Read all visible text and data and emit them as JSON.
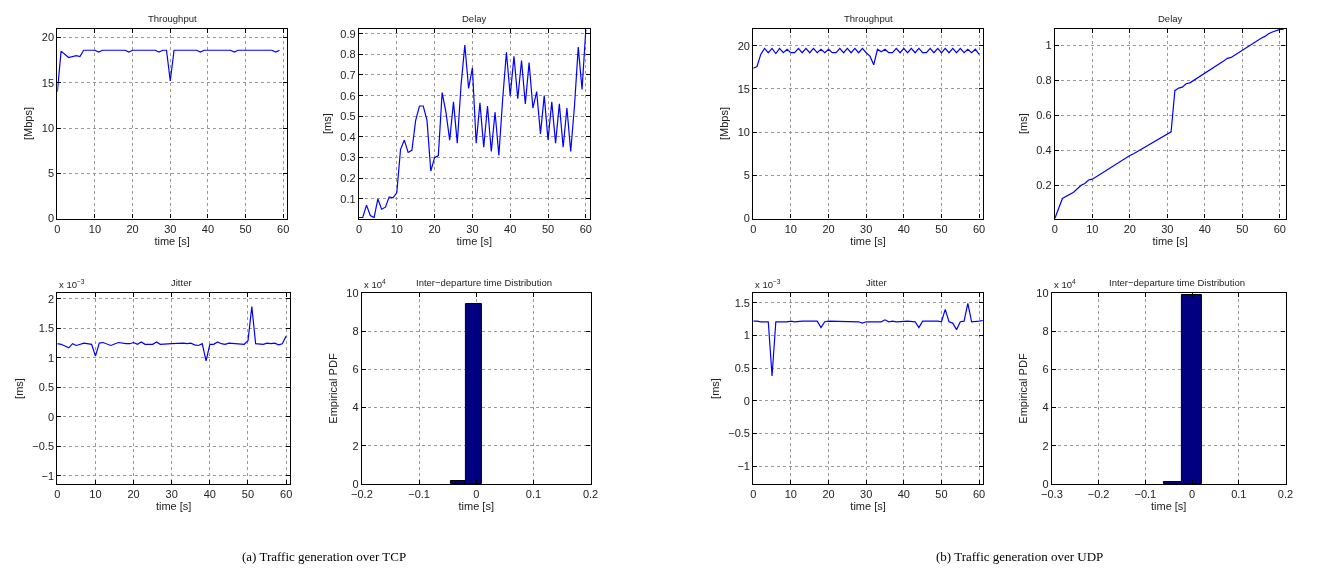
{
  "chart_data": [
    {
      "type": "line",
      "title": "Throughput",
      "xlabel": "time [s]",
      "ylabel": "[Mbps]",
      "color": "#0000ff",
      "grid": true,
      "xlim": [
        0,
        61
      ],
      "ylim": [
        0,
        21
      ],
      "xticks": [
        0,
        10,
        20,
        30,
        40,
        50,
        60
      ],
      "yticks": [
        0,
        5,
        10,
        15,
        20
      ],
      "x": [
        0,
        1,
        3,
        5,
        6,
        7,
        10,
        11,
        12,
        18,
        19,
        20,
        26,
        27,
        28,
        29,
        30,
        31,
        37,
        38,
        39,
        46,
        47,
        48,
        57,
        58,
        59
      ],
      "values": [
        14,
        18.5,
        17.8,
        18,
        17.9,
        18.6,
        18.6,
        18.4,
        18.6,
        18.6,
        18.4,
        18.6,
        18.6,
        18.4,
        18.6,
        18.6,
        15.2,
        18.6,
        18.6,
        18.4,
        18.6,
        18.6,
        18.4,
        18.6,
        18.6,
        18.4,
        18.6
      ]
    },
    {
      "type": "line",
      "title": "Delay",
      "xlabel": "time [s]",
      "ylabel": "[ms]",
      "color": "#0000ff",
      "grid": true,
      "xlim": [
        0,
        61
      ],
      "ylim": [
        0.005,
        0.925
      ],
      "xticks": [
        0,
        10,
        20,
        30,
        40,
        50,
        60
      ],
      "yticks": [
        0.1,
        0.2,
        0.3,
        0.4,
        0.5,
        0.6,
        0.7,
        0.8,
        0.9
      ],
      "x": [
        0,
        1,
        2,
        3,
        4,
        5,
        6,
        7,
        8,
        9,
        10,
        11,
        12,
        13,
        14,
        15,
        16,
        17,
        18,
        19,
        20,
        21,
        22,
        23,
        24,
        25,
        26,
        27,
        28,
        29,
        30,
        31,
        32,
        33,
        34,
        35,
        36,
        37,
        38,
        39,
        40,
        41,
        42,
        43,
        44,
        45,
        46,
        47,
        48,
        49,
        50,
        51,
        52,
        53,
        54,
        55,
        56,
        57,
        58,
        59,
        60
      ],
      "values": [
        0.01,
        0.01,
        0.07,
        0.02,
        0.01,
        0.1,
        0.05,
        0.06,
        0.11,
        0.105,
        0.13,
        0.34,
        0.385,
        0.325,
        0.335,
        0.48,
        0.55,
        0.55,
        0.48,
        0.235,
        0.3,
        0.31,
        0.615,
        0.52,
        0.385,
        0.57,
        0.37,
        0.65,
        0.845,
        0.635,
        0.735,
        0.37,
        0.565,
        0.35,
        0.55,
        0.33,
        0.52,
        0.31,
        0.58,
        0.81,
        0.6,
        0.79,
        0.585,
        0.77,
        0.56,
        0.76,
        0.54,
        0.62,
        0.415,
        0.6,
        0.385,
        0.57,
        0.37,
        0.56,
        0.35,
        0.54,
        0.33,
        0.55,
        0.835,
        0.63,
        0.92
      ]
    },
    {
      "type": "line",
      "title": "Jitter",
      "xlabel": "time [s]",
      "ylabel": "[ms]",
      "color": "#0000ff",
      "grid": true,
      "xlim": [
        0,
        61
      ],
      "ylim": [
        -1.14,
        2.1
      ],
      "xticks": [
        0,
        10,
        20,
        30,
        40,
        50,
        60
      ],
      "yticks": [
        -1,
        -0.5,
        0,
        0.5,
        1,
        1.5,
        2
      ],
      "annotations": [
        "x 10$^{−3}$",
        "(a) Traffic generation over TCP"
      ],
      "x": [
        0,
        1,
        3,
        4,
        5,
        7,
        9,
        10,
        11,
        12,
        14,
        16,
        18,
        19,
        20,
        21,
        22,
        23,
        25,
        26,
        27,
        30,
        33,
        34,
        35,
        36,
        37,
        38,
        39,
        40,
        41,
        42,
        43,
        44,
        45,
        49,
        50,
        51,
        52,
        54,
        55,
        56,
        57,
        58,
        59,
        60
      ],
      "values": [
        1.24,
        1.23,
        1.17,
        1.24,
        1.21,
        1.25,
        1.23,
        1.03,
        1.25,
        1.26,
        1.21,
        1.26,
        1.24,
        1.24,
        1.26,
        1.23,
        1.27,
        1.23,
        1.23,
        1.27,
        1.23,
        1.24,
        1.25,
        1.24,
        1.25,
        1.22,
        1.21,
        1.24,
        0.95,
        1.23,
        1.23,
        1.27,
        1.24,
        1.23,
        1.25,
        1.23,
        1.29,
        1.87,
        1.24,
        1.23,
        1.25,
        1.24,
        1.25,
        1.22,
        1.24,
        1.37
      ]
    },
    {
      "type": "histogram",
      "title": "Inter−departure time Distribution",
      "xlabel": "time [s]",
      "ylabel": "Empirical PDF",
      "color": "#000080",
      "grid": true,
      "xlim": [
        -0.2,
        0.2
      ],
      "ylim": [
        0,
        10
      ],
      "xticks": [
        -0.2,
        -0.1,
        0,
        0.1,
        0.2
      ],
      "yticks": [
        0,
        2,
        4,
        6,
        8,
        10
      ],
      "annotations": [
        "x 10$^{4}$"
      ],
      "bins": [
        -0.045,
        -0.018,
        0.01
      ],
      "values": [
        0.15,
        9.4
      ]
    },
    {
      "type": "line",
      "title": "Throughput",
      "xlabel": "time [s]",
      "ylabel": "[Mbps]",
      "color": "#0000ff",
      "grid": true,
      "xlim": [
        0,
        61
      ],
      "ylim": [
        0,
        22
      ],
      "xticks": [
        0,
        10,
        20,
        30,
        40,
        50,
        60
      ],
      "yticks": [
        0,
        5,
        10,
        15,
        20
      ],
      "x": [
        0,
        1,
        2,
        3,
        4,
        5,
        6,
        7,
        8,
        9,
        10,
        11,
        12,
        13,
        14,
        15,
        16,
        17,
        18,
        19,
        20,
        21,
        22,
        23,
        24,
        25,
        26,
        27,
        28,
        29,
        30,
        31,
        32,
        33,
        34,
        35,
        36,
        37,
        38,
        39,
        40,
        41,
        42,
        43,
        44,
        45,
        46,
        47,
        48,
        49,
        50,
        51,
        52,
        53,
        54,
        55,
        56,
        57,
        58,
        59,
        60
      ],
      "values": [
        17.4,
        17.6,
        19,
        19.7,
        19.2,
        19.7,
        19.1,
        19.7,
        19.2,
        19.6,
        19.2,
        19.2,
        19.7,
        19.2,
        19.7,
        19.2,
        19.7,
        19.2,
        19.6,
        19.2,
        19.6,
        19.2,
        19.2,
        19.7,
        19.2,
        19.7,
        19.2,
        19.7,
        19.2,
        19.7,
        19.2,
        18.8,
        17.8,
        19.6,
        19.3,
        19.6,
        19.2,
        19.2,
        19.7,
        19.2,
        19.7,
        19.2,
        19.7,
        19.2,
        19.7,
        19.2,
        19.2,
        19.7,
        19.2,
        19.7,
        19.2,
        19.7,
        19.2,
        19.7,
        19.2,
        19.7,
        19.2,
        19.6,
        19.2,
        19.6,
        19.0
      ]
    },
    {
      "type": "line",
      "title": "Delay",
      "xlabel": "time [s]",
      "ylabel": "[ms]",
      "color": "#0000ff",
      "grid": true,
      "xlim": [
        0,
        61.5
      ],
      "ylim": [
        0.01,
        1.095
      ],
      "xticks": [
        0,
        10,
        20,
        30,
        40,
        50,
        60
      ],
      "yticks": [
        0.2,
        0.4,
        0.6,
        0.8,
        1
      ],
      "x": [
        0,
        2,
        5,
        7,
        8,
        9,
        10,
        20,
        21,
        31,
        32,
        33,
        34,
        35,
        36,
        45,
        46,
        47,
        55,
        56,
        57,
        58,
        60,
        61
      ],
      "values": [
        0.01,
        0.125,
        0.16,
        0.2,
        0.21,
        0.23,
        0.235,
        0.37,
        0.38,
        0.505,
        0.74,
        0.755,
        0.76,
        0.78,
        0.785,
        0.91,
        0.925,
        0.93,
        1.04,
        1.05,
        1.065,
        1.075,
        1.09,
        1.09
      ]
    },
    {
      "type": "line",
      "title": "Jitter",
      "xlabel": "time [s]",
      "ylabel": "[ms]",
      "color": "#0000ff",
      "grid": true,
      "xlim": [
        0,
        61
      ],
      "ylim": [
        -1.27,
        1.65
      ],
      "xticks": [
        0,
        10,
        20,
        30,
        40,
        50,
        60
      ],
      "yticks": [
        -1,
        -0.5,
        0,
        0.5,
        1,
        1.5
      ],
      "annotations": [
        "x 10$^{−3}$",
        "(b) Traffic generation over UDP"
      ],
      "x": [
        0,
        1,
        2,
        4,
        5,
        6,
        9,
        10,
        11,
        13,
        17,
        18,
        19,
        20,
        28,
        29,
        30,
        34,
        35,
        36,
        37,
        38,
        41,
        43,
        44,
        45,
        49,
        50,
        51,
        52,
        53,
        54,
        55,
        56,
        57,
        58,
        60,
        61
      ],
      "values": [
        1.22,
        1.22,
        1.21,
        1.21,
        0.38,
        1.21,
        1.21,
        1.22,
        1.21,
        1.22,
        1.22,
        1.12,
        1.21,
        1.22,
        1.21,
        1.19,
        1.21,
        1.21,
        1.24,
        1.21,
        1.22,
        1.21,
        1.22,
        1.21,
        1.12,
        1.22,
        1.22,
        1.21,
        1.4,
        1.21,
        1.19,
        1.09,
        1.21,
        1.22,
        1.49,
        1.21,
        1.22,
        1.23
      ]
    },
    {
      "type": "histogram",
      "title": "Inter−departure time Distribution",
      "xlabel": "time [s]",
      "ylabel": "Empirical PDF",
      "color": "#000080",
      "grid": true,
      "xlim": [
        -0.3,
        0.2
      ],
      "ylim": [
        0,
        10
      ],
      "xticks": [
        -0.3,
        -0.2,
        -0.1,
        0,
        0.1,
        0.2
      ],
      "yticks": [
        0,
        2,
        4,
        6,
        8,
        10
      ],
      "annotations": [
        "x 10$^{4}$"
      ],
      "bins": [
        -0.061,
        -0.021,
        0.02
      ],
      "values": [
        0.1,
        9.9
      ]
    }
  ]
}
